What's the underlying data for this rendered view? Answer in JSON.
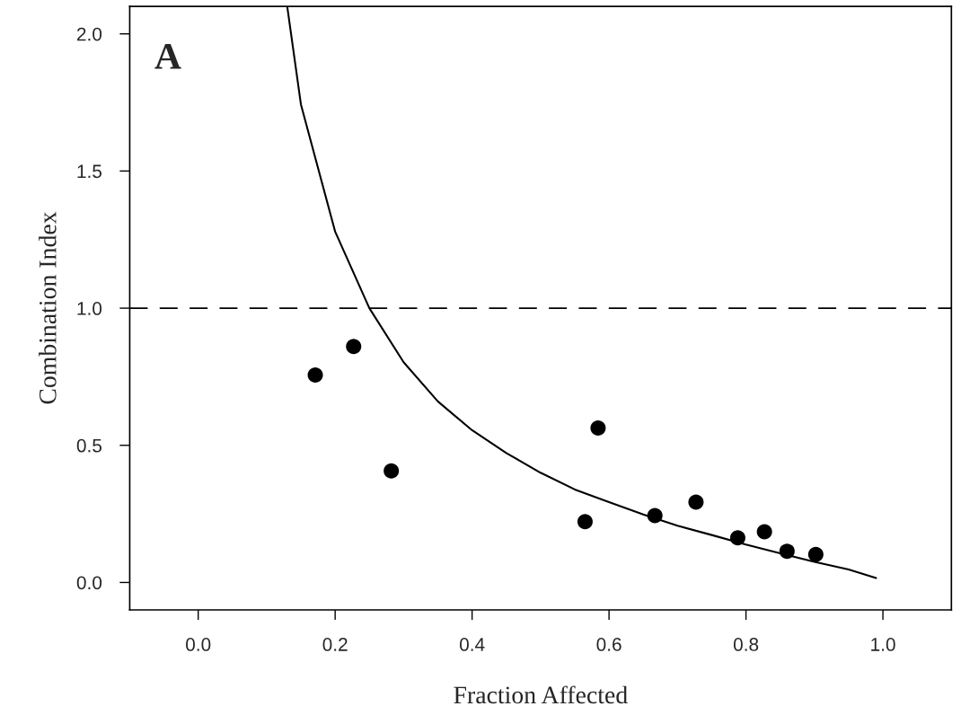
{
  "chart_data": {
    "type": "scatter",
    "xlabel": "Fraction Affected",
    "ylabel": "Combination Index",
    "annotations": [
      "A"
    ],
    "series": [
      {
        "color": "#000000",
        "marker": "circle",
        "x": [
          0.171,
          0.227,
          0.282,
          0.565,
          0.584,
          0.667,
          0.727,
          0.788,
          0.827,
          0.86,
          0.902
        ],
        "values": [
          0.756,
          0.86,
          0.407,
          0.222,
          0.563,
          0.244,
          0.293,
          0.163,
          0.185,
          0.114,
          0.102
        ]
      },
      {
        "type": "line",
        "color": "#000000",
        "marker": "none",
        "line_style": "solid",
        "x": [
          0.13,
          0.15,
          0.2,
          0.25,
          0.3,
          0.35,
          0.4,
          0.45,
          0.5,
          0.55,
          0.6,
          0.65,
          0.7,
          0.75,
          0.8,
          0.85,
          0.9,
          0.95,
          0.99
        ],
        "values": [
          2.1,
          1.743,
          1.279,
          1.0,
          0.803,
          0.66,
          0.555,
          0.472,
          0.4,
          0.339,
          0.293,
          0.248,
          0.207,
          0.173,
          0.138,
          0.106,
          0.075,
          0.047,
          0.016
        ]
      }
    ],
    "ref_lines": [
      {
        "axis": "y",
        "value": 1.0,
        "color": "#000000",
        "line_style": "dashed"
      }
    ],
    "xlim": [
      -0.1,
      1.1
    ],
    "xticks": [
      {
        "value": 0,
        "label": "0.0"
      },
      0.2,
      0.4,
      0.6,
      0.8,
      {
        "value": 1,
        "label": "1.0"
      }
    ],
    "ylim": [
      -0.1,
      2.1
    ],
    "yticks": [
      {
        "value": 0,
        "label": "0.0"
      },
      0.5,
      {
        "value": 1,
        "label": "1.0"
      },
      1.5,
      {
        "value": 2,
        "label": "2.0"
      }
    ],
    "grid": false,
    "legend": false
  }
}
